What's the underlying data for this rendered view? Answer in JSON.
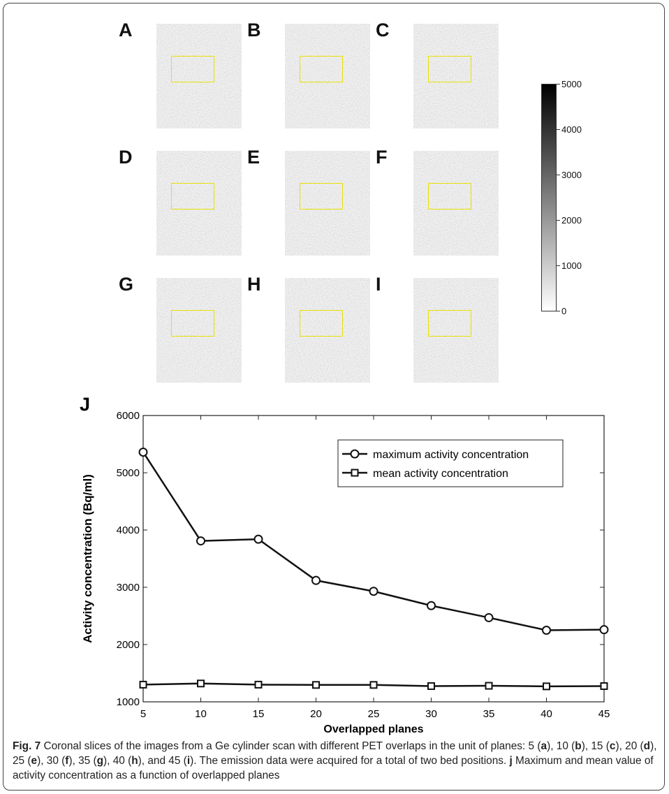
{
  "panels": [
    {
      "letter": "A"
    },
    {
      "letter": "B"
    },
    {
      "letter": "C"
    },
    {
      "letter": "D"
    },
    {
      "letter": "E"
    },
    {
      "letter": "F"
    },
    {
      "letter": "G"
    },
    {
      "letter": "H"
    },
    {
      "letter": "I"
    }
  ],
  "colorbar": {
    "ticks": [
      "5000",
      "4000",
      "3000",
      "2000",
      "1000",
      "0"
    ],
    "range": [
      0,
      5000
    ]
  },
  "chart_data": {
    "type": "line",
    "panel_letter": "J",
    "xlabel": "Overlapped planes",
    "ylabel": "Activity concentration (Bq/ml)",
    "x": [
      5,
      10,
      15,
      20,
      25,
      30,
      35,
      40,
      45
    ],
    "xlim": [
      5,
      45
    ],
    "ylim": [
      1000,
      6000
    ],
    "xticks": [
      5,
      10,
      15,
      20,
      25,
      30,
      35,
      40,
      45
    ],
    "yticks": [
      1000,
      2000,
      3000,
      4000,
      5000,
      6000
    ],
    "legend_position": "top-right",
    "series": [
      {
        "name": "maximum activity concentration",
        "marker": "circle",
        "values": [
          5360,
          3810,
          3840,
          3120,
          2930,
          2680,
          2470,
          2250,
          2260
        ]
      },
      {
        "name": "mean activity concentration",
        "marker": "square",
        "values": [
          1300,
          1320,
          1300,
          1295,
          1295,
          1275,
          1280,
          1270,
          1275
        ]
      }
    ]
  },
  "caption": {
    "fig_label": "Fig. 7",
    "t1": " Coronal slices of the images from a Ge cylinder scan with different PET overlaps in the unit of planes: 5 (",
    "a": "a",
    "t2": "), 10 (",
    "b": "b",
    "t3": "), 15 (",
    "c": "c",
    "t4": "), 20 (",
    "d": "d",
    "t5": "), 25 (",
    "e": "e",
    "t6": "), 30 (",
    "f": "f",
    "t7": "), 35 (",
    "g": "g",
    "t8": "), 40 (",
    "h": "h",
    "t9": "), and 45 (",
    "i": "i",
    "t10": "). The emission data were acquired for a total of two bed positions. ",
    "j": "j",
    "t11": " Maximum and mean value of activity concentration as a function of overlapped planes"
  }
}
